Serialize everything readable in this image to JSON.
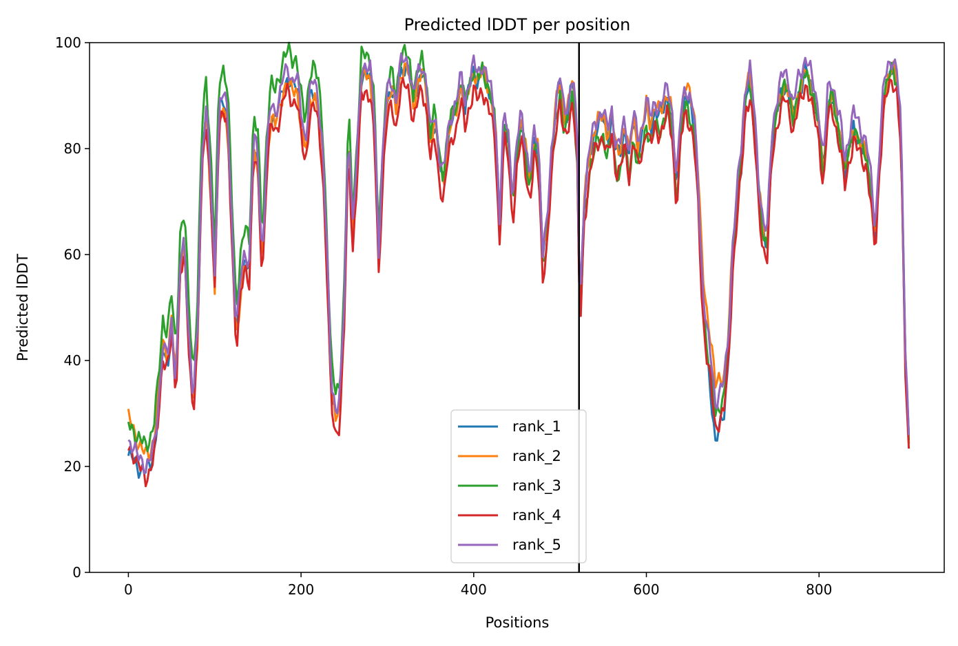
{
  "chart_data": {
    "type": "line",
    "title": "Predicted lDDT per position",
    "xlabel": "Positions",
    "ylabel": "Predicted lDDT",
    "xlim": [
      -45,
      945
    ],
    "ylim": [
      0,
      100
    ],
    "xticks": [
      0,
      200,
      400,
      600,
      800
    ],
    "yticks": [
      0,
      20,
      40,
      60,
      80,
      100
    ],
    "grid": false,
    "legend_position": "lower-center",
    "vline": {
      "x": 522,
      "color": "#000000"
    },
    "series_order": [
      "rank_1",
      "rank_2",
      "rank_3",
      "rank_4",
      "rank_5"
    ],
    "x_step": 10,
    "x_range": [
      0,
      904
    ],
    "base_profile": [
      [
        0,
        25
      ],
      [
        5,
        24
      ],
      [
        10,
        22
      ],
      [
        15,
        21
      ],
      [
        20,
        20
      ],
      [
        25,
        21
      ],
      [
        30,
        24
      ],
      [
        35,
        32
      ],
      [
        40,
        43
      ],
      [
        45,
        40
      ],
      [
        50,
        47
      ],
      [
        55,
        36
      ],
      [
        60,
        58
      ],
      [
        65,
        62
      ],
      [
        70,
        45
      ],
      [
        75,
        32
      ],
      [
        80,
        45
      ],
      [
        85,
        78
      ],
      [
        90,
        88
      ],
      [
        95,
        75
      ],
      [
        100,
        55
      ],
      [
        105,
        88
      ],
      [
        110,
        90
      ],
      [
        115,
        86
      ],
      [
        120,
        65
      ],
      [
        125,
        45
      ],
      [
        130,
        55
      ],
      [
        135,
        60
      ],
      [
        140,
        58
      ],
      [
        145,
        82
      ],
      [
        150,
        78
      ],
      [
        155,
        58
      ],
      [
        160,
        78
      ],
      [
        165,
        88
      ],
      [
        170,
        86
      ],
      [
        175,
        89
      ],
      [
        180,
        93
      ],
      [
        185,
        94
      ],
      [
        190,
        92
      ],
      [
        195,
        93
      ],
      [
        200,
        86
      ],
      [
        205,
        80
      ],
      [
        210,
        90
      ],
      [
        215,
        92
      ],
      [
        220,
        88
      ],
      [
        225,
        80
      ],
      [
        230,
        60
      ],
      [
        235,
        35
      ],
      [
        240,
        30
      ],
      [
        245,
        32
      ],
      [
        250,
        50
      ],
      [
        255,
        84
      ],
      [
        260,
        65
      ],
      [
        265,
        78
      ],
      [
        270,
        94
      ],
      [
        275,
        95
      ],
      [
        280,
        94
      ],
      [
        285,
        86
      ],
      [
        290,
        60
      ],
      [
        295,
        80
      ],
      [
        300,
        90
      ],
      [
        305,
        92
      ],
      [
        310,
        88
      ],
      [
        315,
        95
      ],
      [
        320,
        96
      ],
      [
        325,
        95
      ],
      [
        330,
        89
      ],
      [
        335,
        93
      ],
      [
        340,
        95
      ],
      [
        345,
        92
      ],
      [
        350,
        82
      ],
      [
        355,
        86
      ],
      [
        360,
        78
      ],
      [
        365,
        74
      ],
      [
        370,
        82
      ],
      [
        375,
        86
      ],
      [
        380,
        88
      ],
      [
        385,
        93
      ],
      [
        390,
        88
      ],
      [
        395,
        92
      ],
      [
        400,
        95
      ],
      [
        405,
        93
      ],
      [
        410,
        95
      ],
      [
        415,
        93
      ],
      [
        420,
        90
      ],
      [
        425,
        85
      ],
      [
        430,
        66
      ],
      [
        435,
        86
      ],
      [
        440,
        82
      ],
      [
        445,
        70
      ],
      [
        450,
        80
      ],
      [
        455,
        86
      ],
      [
        460,
        80
      ],
      [
        465,
        74
      ],
      [
        470,
        82
      ],
      [
        475,
        80
      ],
      [
        480,
        60
      ],
      [
        485,
        65
      ],
      [
        490,
        78
      ],
      [
        495,
        88
      ],
      [
        500,
        93
      ],
      [
        505,
        85
      ],
      [
        510,
        88
      ],
      [
        515,
        94
      ],
      [
        520,
        80
      ],
      [
        523,
        48
      ],
      [
        528,
        70
      ],
      [
        535,
        80
      ],
      [
        540,
        83
      ],
      [
        545,
        85
      ],
      [
        550,
        86
      ],
      [
        555,
        82
      ],
      [
        560,
        86
      ],
      [
        565,
        79
      ],
      [
        570,
        80
      ],
      [
        575,
        84
      ],
      [
        580,
        78
      ],
      [
        585,
        86
      ],
      [
        590,
        80
      ],
      [
        595,
        82
      ],
      [
        600,
        88
      ],
      [
        605,
        84
      ],
      [
        610,
        87
      ],
      [
        615,
        86
      ],
      [
        620,
        88
      ],
      [
        625,
        90
      ],
      [
        630,
        85
      ],
      [
        635,
        72
      ],
      [
        640,
        85
      ],
      [
        645,
        90
      ],
      [
        650,
        88
      ],
      [
        655,
        85
      ],
      [
        660,
        72
      ],
      [
        665,
        52
      ],
      [
        670,
        44
      ],
      [
        675,
        38
      ],
      [
        680,
        30
      ],
      [
        685,
        32
      ],
      [
        690,
        34
      ],
      [
        695,
        42
      ],
      [
        700,
        60
      ],
      [
        705,
        70
      ],
      [
        710,
        78
      ],
      [
        715,
        90
      ],
      [
        720,
        93
      ],
      [
        725,
        85
      ],
      [
        730,
        72
      ],
      [
        735,
        64
      ],
      [
        740,
        62
      ],
      [
        745,
        80
      ],
      [
        750,
        86
      ],
      [
        755,
        90
      ],
      [
        760,
        92
      ],
      [
        765,
        90
      ],
      [
        770,
        86
      ],
      [
        775,
        90
      ],
      [
        780,
        92
      ],
      [
        785,
        95
      ],
      [
        790,
        92
      ],
      [
        795,
        88
      ],
      [
        800,
        84
      ],
      [
        805,
        75
      ],
      [
        810,
        88
      ],
      [
        815,
        90
      ],
      [
        820,
        86
      ],
      [
        825,
        82
      ],
      [
        830,
        75
      ],
      [
        835,
        80
      ],
      [
        840,
        84
      ],
      [
        845,
        82
      ],
      [
        850,
        80
      ],
      [
        855,
        79
      ],
      [
        860,
        72
      ],
      [
        865,
        62
      ],
      [
        870,
        78
      ],
      [
        875,
        90
      ],
      [
        880,
        93
      ],
      [
        885,
        95
      ],
      [
        890,
        93
      ],
      [
        895,
        82
      ],
      [
        900,
        40
      ],
      [
        904,
        25
      ]
    ],
    "series": [
      {
        "name": "rank_1",
        "color": "#1f77b4",
        "offset": [
          [
            0,
            -3
          ],
          [
            20,
            -1
          ],
          [
            660,
            0
          ],
          [
            680,
            -6
          ],
          [
            700,
            -1
          ],
          [
            760,
            0
          ]
        ]
      },
      {
        "name": "rank_2",
        "color": "#ff7f0e",
        "offset": [
          [
            0,
            4
          ],
          [
            20,
            2
          ],
          [
            100,
            -2
          ],
          [
            640,
            1
          ],
          [
            675,
            6
          ],
          [
            700,
            2
          ],
          [
            760,
            0
          ]
        ]
      },
      {
        "name": "rank_3",
        "color": "#2ca02c",
        "offset": [
          [
            0,
            3
          ],
          [
            60,
            6
          ],
          [
            130,
            5
          ],
          [
            240,
            4
          ],
          [
            570,
            -4
          ],
          [
            640,
            -2
          ],
          [
            700,
            0
          ]
        ]
      },
      {
        "name": "rank_4",
        "color": "#d62728",
        "offset": [
          [
            0,
            -1
          ],
          [
            20,
            -2
          ],
          [
            150,
            -3
          ],
          [
            260,
            -4
          ],
          [
            480,
            -4
          ],
          [
            700,
            -3
          ],
          [
            900,
            -2
          ]
        ]
      },
      {
        "name": "rank_5",
        "color": "#9467bd",
        "offset": [
          [
            0,
            0
          ],
          [
            200,
            1
          ],
          [
            500,
            1
          ],
          [
            840,
            3
          ],
          [
            900,
            2
          ]
        ]
      }
    ]
  }
}
